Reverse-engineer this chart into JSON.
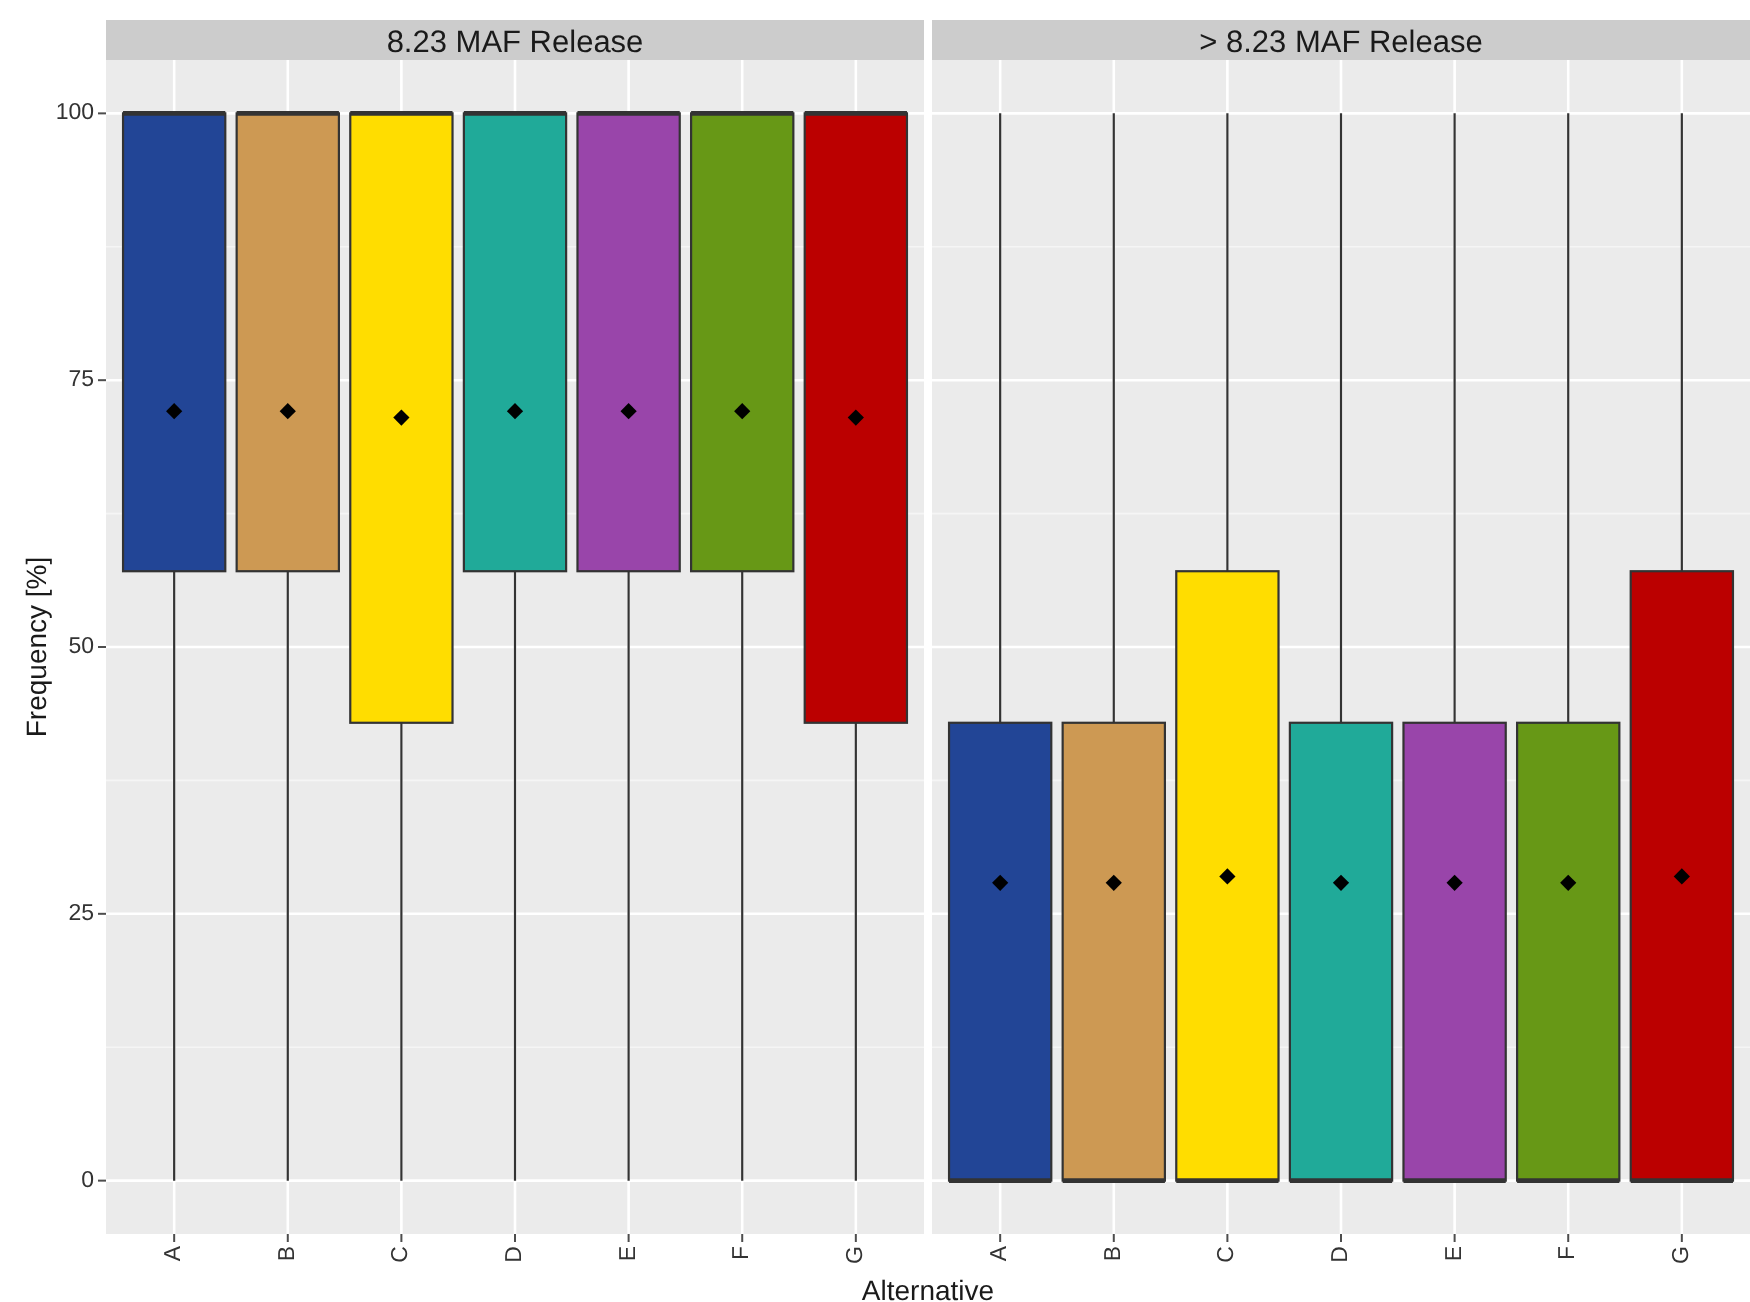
{
  "chart_data": [
    {
      "type": "box",
      "title": "8.23 MAF Release",
      "ylabel": "Frequency [%]",
      "xlabel": "Alternative",
      "categories": [
        "A",
        "B",
        "C",
        "D",
        "E",
        "F",
        "G"
      ],
      "colors": [
        "#224596",
        "#cd9953",
        "#ffdd00",
        "#20aa99",
        "#9945aa",
        "#679816",
        "#bb0000"
      ],
      "boxes": [
        {
          "low": 0,
          "q1": 57.1,
          "median": 100,
          "q3": 100,
          "high": 100,
          "mean": 72.1
        },
        {
          "low": 0,
          "q1": 57.1,
          "median": 100,
          "q3": 100,
          "high": 100,
          "mean": 72.1
        },
        {
          "low": 0,
          "q1": 42.9,
          "median": 100,
          "q3": 100,
          "high": 100,
          "mean": 71.5
        },
        {
          "low": 0,
          "q1": 57.1,
          "median": 100,
          "q3": 100,
          "high": 100,
          "mean": 72.1
        },
        {
          "low": 0,
          "q1": 57.1,
          "median": 100,
          "q3": 100,
          "high": 100,
          "mean": 72.1
        },
        {
          "low": 0,
          "q1": 57.1,
          "median": 100,
          "q3": 100,
          "high": 100,
          "mean": 72.1
        },
        {
          "low": 0,
          "q1": 42.9,
          "median": 100,
          "q3": 100,
          "high": 100,
          "mean": 71.5
        }
      ],
      "ylim": [
        -5,
        105
      ],
      "yticks": [
        0,
        25,
        50,
        75,
        100
      ],
      "grid": true,
      "marker": "diamond"
    },
    {
      "type": "box",
      "title": "> 8.23 MAF Release",
      "categories": [
        "A",
        "B",
        "C",
        "D",
        "E",
        "F",
        "G"
      ],
      "colors": [
        "#224596",
        "#cd9953",
        "#ffdd00",
        "#20aa99",
        "#9945aa",
        "#679816",
        "#bb0000"
      ],
      "boxes": [
        {
          "low": 0,
          "q1": 0,
          "median": 0,
          "q3": 42.9,
          "high": 100,
          "mean": 27.9
        },
        {
          "low": 0,
          "q1": 0,
          "median": 0,
          "q3": 42.9,
          "high": 100,
          "mean": 27.9
        },
        {
          "low": 0,
          "q1": 0,
          "median": 0,
          "q3": 57.1,
          "high": 100,
          "mean": 28.5
        },
        {
          "low": 0,
          "q1": 0,
          "median": 0,
          "q3": 42.9,
          "high": 100,
          "mean": 27.9
        },
        {
          "low": 0,
          "q1": 0,
          "median": 0,
          "q3": 42.9,
          "high": 100,
          "mean": 27.9
        },
        {
          "low": 0,
          "q1": 0,
          "median": 0,
          "q3": 42.9,
          "high": 100,
          "mean": 27.9
        },
        {
          "low": 0,
          "q1": 0,
          "median": 0,
          "q3": 57.1,
          "high": 100,
          "mean": 28.5
        }
      ],
      "ylim": [
        -5,
        105
      ],
      "yticks": [
        0,
        25,
        50,
        75,
        100
      ],
      "grid": true,
      "marker": "diamond",
      "tick_labels": "x"
    }
  ]
}
